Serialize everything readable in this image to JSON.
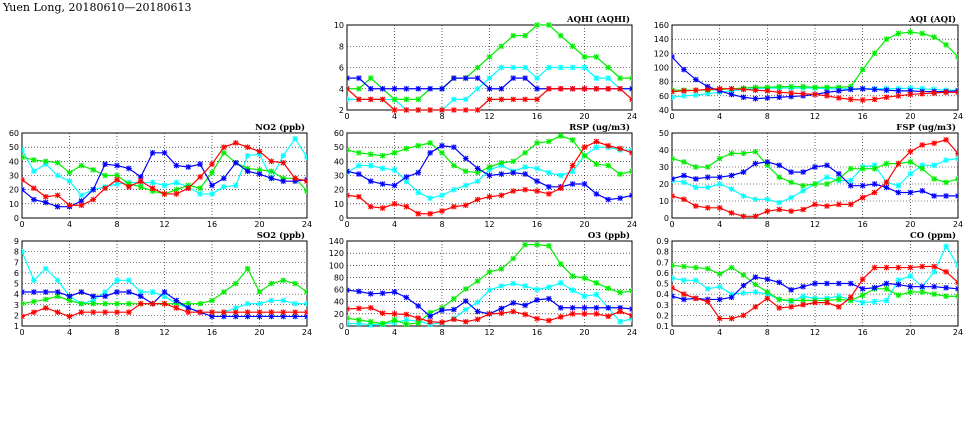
{
  "title": "Yuen Long, 20180610—20180613",
  "chart_data": [
    {
      "type": "line",
      "title": "AQHI (AQHI)",
      "ylim": [
        2,
        10
      ],
      "yticks": [
        2,
        4,
        6,
        8,
        10
      ],
      "xlim": [
        0,
        24
      ],
      "xticks": [
        0,
        4,
        8,
        12,
        16,
        20,
        24
      ],
      "grid": true,
      "series": [
        {
          "color": "#00ffff",
          "values": [
            3,
            3,
            3,
            3,
            3,
            2,
            2,
            2,
            2,
            3,
            3,
            4,
            5,
            6,
            6,
            6,
            5,
            6,
            6,
            6,
            6,
            5,
            5,
            4,
            4
          ]
        },
        {
          "color": "#00ee00",
          "values": [
            4,
            4,
            5,
            4,
            3,
            3,
            3,
            4,
            4,
            5,
            5,
            6,
            7,
            8,
            9,
            9,
            10,
            10,
            9,
            8,
            7,
            7,
            6,
            5,
            5
          ]
        },
        {
          "color": "#0000ff",
          "values": [
            5,
            5,
            4,
            4,
            4,
            4,
            4,
            4,
            4,
            5,
            5,
            5,
            4,
            4,
            5,
            5,
            4,
            4,
            4,
            4,
            4,
            4,
            4,
            4,
            4
          ]
        },
        {
          "color": "#ff0000",
          "values": [
            4,
            3,
            3,
            3,
            2,
            2,
            2,
            2,
            2,
            2,
            2,
            2,
            3,
            3,
            3,
            3,
            3,
            4,
            4,
            4,
            4,
            4,
            4,
            4,
            3
          ]
        }
      ]
    },
    {
      "type": "line",
      "title": "AQI (AQI)",
      "ylim": [
        40,
        160
      ],
      "yticks": [
        40,
        60,
        80,
        100,
        120,
        140,
        160
      ],
      "xlim": [
        0,
        24
      ],
      "xticks": [
        0,
        4,
        8,
        12,
        16,
        20,
        24
      ],
      "grid": true,
      "series": [
        {
          "color": "#00ffff",
          "values": [
            58,
            60,
            61,
            63,
            65,
            67,
            69,
            70,
            71,
            71,
            71,
            71,
            71,
            70,
            70,
            70,
            70,
            70,
            70,
            70,
            71,
            70,
            69,
            68,
            68
          ]
        },
        {
          "color": "#00ee00",
          "values": [
            68,
            68,
            68,
            68,
            69,
            70,
            71,
            72,
            72,
            73,
            73,
            73,
            72,
            72,
            72,
            73,
            97,
            120,
            140,
            148,
            150,
            148,
            143,
            132,
            115
          ]
        },
        {
          "color": "#0000ff",
          "values": [
            115,
            97,
            83,
            73,
            67,
            62,
            58,
            56,
            57,
            58,
            59,
            60,
            62,
            65,
            67,
            69,
            70,
            69,
            68,
            67,
            67,
            66,
            66,
            66,
            67
          ]
        },
        {
          "color": "#ff0000",
          "values": [
            66,
            67,
            68,
            69,
            70,
            70,
            69,
            68,
            67,
            65,
            64,
            63,
            62,
            60,
            57,
            55,
            54,
            55,
            58,
            60,
            62,
            63,
            64,
            65,
            65
          ]
        }
      ]
    },
    {
      "type": "line",
      "title": "NO2 (ppb)",
      "ylim": [
        0,
        60
      ],
      "yticks": [
        0,
        10,
        20,
        30,
        40,
        50,
        60
      ],
      "xlim": [
        0,
        24
      ],
      "xticks": [
        0,
        4,
        8,
        12,
        16,
        20,
        24
      ],
      "grid": true,
      "series": [
        {
          "color": "#00ffff",
          "values": [
            48,
            33,
            38,
            30,
            26,
            16,
            20,
            22,
            24,
            25,
            25,
            25,
            23,
            25,
            22,
            17,
            17,
            22,
            23,
            44,
            45,
            28,
            44,
            56,
            43
          ]
        },
        {
          "color": "#00ee00",
          "values": [
            43,
            41,
            40,
            39,
            32,
            37,
            34,
            30,
            30,
            24,
            22,
            19,
            17,
            20,
            23,
            21,
            32,
            46,
            39,
            35,
            34,
            33,
            28,
            28,
            19
          ]
        },
        {
          "color": "#0000ff",
          "values": [
            20,
            13,
            11,
            8,
            8,
            12,
            20,
            38,
            37,
            35,
            29,
            46,
            46,
            37,
            36,
            38,
            23,
            28,
            39,
            33,
            31,
            28,
            26,
            26,
            27
          ]
        },
        {
          "color": "#ff0000",
          "values": [
            27,
            21,
            15,
            16,
            9,
            9,
            13,
            21,
            27,
            22,
            26,
            21,
            17,
            17,
            21,
            29,
            38,
            50,
            53,
            50,
            47,
            40,
            39,
            28,
            26
          ]
        }
      ]
    },
    {
      "type": "line",
      "title": "RSP (ug/m3)",
      "ylim": [
        0,
        60
      ],
      "yticks": [
        0,
        10,
        20,
        30,
        40,
        50,
        60
      ],
      "xlim": [
        0,
        24
      ],
      "xticks": [
        0,
        4,
        8,
        12,
        16,
        20,
        24
      ],
      "grid": true,
      "series": [
        {
          "color": "#00ffff",
          "values": [
            32,
            37,
            37,
            35,
            34,
            26,
            18,
            14,
            16,
            20,
            23,
            26,
            34,
            37,
            33,
            36,
            35,
            32,
            30,
            33,
            44,
            50,
            50,
            48,
            48
          ]
        },
        {
          "color": "#00ee00",
          "values": [
            48,
            46,
            45,
            44,
            46,
            49,
            51,
            53,
            46,
            37,
            33,
            32,
            36,
            39,
            40,
            46,
            53,
            54,
            58,
            55,
            44,
            38,
            37,
            31,
            33
          ]
        },
        {
          "color": "#0000ff",
          "values": [
            33,
            31,
            26,
            24,
            23,
            29,
            32,
            46,
            51,
            50,
            42,
            35,
            30,
            31,
            32,
            31,
            26,
            22,
            22,
            24,
            24,
            17,
            13,
            14,
            16
          ]
        },
        {
          "color": "#ff0000",
          "values": [
            16,
            15,
            8,
            7,
            10,
            8,
            3,
            3,
            5,
            8,
            9,
            13,
            15,
            16,
            19,
            20,
            19,
            17,
            21,
            37,
            50,
            54,
            51,
            49,
            46
          ]
        }
      ]
    },
    {
      "type": "line",
      "title": "FSP (ug/m3)",
      "ylim": [
        0,
        50
      ],
      "yticks": [
        0,
        10,
        20,
        30,
        40,
        50
      ],
      "xlim": [
        0,
        24
      ],
      "xticks": [
        0,
        4,
        8,
        12,
        16,
        20,
        24
      ],
      "grid": true,
      "series": [
        {
          "color": "#00ffff",
          "values": [
            22,
            21,
            18,
            18,
            20,
            17,
            13,
            11,
            11,
            9,
            12,
            16,
            20,
            24,
            22,
            22,
            30,
            31,
            21,
            19,
            26,
            31,
            31,
            34,
            35
          ]
        },
        {
          "color": "#00ee00",
          "values": [
            35,
            33,
            30,
            30,
            35,
            38,
            38,
            39,
            31,
            24,
            21,
            19,
            20,
            20,
            23,
            29,
            29,
            29,
            32,
            32,
            33,
            29,
            23,
            21,
            23
          ]
        },
        {
          "color": "#0000ff",
          "values": [
            23,
            25,
            23,
            24,
            24,
            25,
            27,
            32,
            33,
            31,
            27,
            27,
            30,
            31,
            26,
            19,
            19,
            20,
            18,
            15,
            15,
            16,
            13,
            13,
            13
          ]
        },
        {
          "color": "#ff0000",
          "values": [
            13,
            11,
            7,
            6,
            6,
            3,
            1,
            1,
            4,
            5,
            4,
            5,
            8,
            7,
            8,
            8,
            12,
            15,
            21,
            32,
            39,
            43,
            44,
            46,
            38
          ]
        }
      ]
    },
    {
      "type": "line",
      "title": "SO2 (ppb)",
      "ylim": [
        1,
        9
      ],
      "yticks": [
        1,
        2,
        3,
        4,
        5,
        6,
        7,
        8,
        9
      ],
      "xlim": [
        0,
        24
      ],
      "xticks": [
        0,
        4,
        8,
        12,
        16,
        20,
        24
      ],
      "grid": true,
      "series": [
        {
          "color": "#00ffff",
          "values": [
            8,
            5.3,
            6.4,
            5.3,
            3.8,
            3.1,
            3.4,
            4.2,
            5.3,
            5.3,
            4.2,
            4.2,
            3.8,
            3.1,
            2.7,
            2.3,
            2.3,
            2.3,
            2.7,
            3.1,
            3.1,
            3.4,
            3.4,
            3.1,
            3.1
          ]
        },
        {
          "color": "#00ee00",
          "values": [
            3.1,
            3.3,
            3.5,
            3.8,
            3.4,
            3.1,
            3.1,
            3.1,
            3.1,
            3.1,
            3.1,
            3.1,
            3.1,
            3.1,
            3.1,
            3.1,
            3.4,
            4.2,
            5,
            6.4,
            4.2,
            5,
            5.3,
            5,
            4.2
          ]
        },
        {
          "color": "#0000ff",
          "values": [
            4.2,
            4.2,
            4.2,
            4.2,
            3.8,
            4.2,
            3.8,
            3.8,
            4.2,
            4.2,
            3.8,
            3.1,
            4.2,
            3.4,
            2.7,
            2.3,
            1.9,
            1.9,
            1.9,
            1.9,
            1.9,
            1.9,
            1.9,
            1.9,
            1.9
          ]
        },
        {
          "color": "#ff0000",
          "values": [
            1.9,
            2.3,
            2.7,
            2.3,
            1.9,
            2.3,
            2.3,
            2.3,
            2.3,
            2.3,
            3.1,
            3.1,
            3.1,
            2.7,
            2.3,
            2.3,
            2.3,
            2.3,
            2.3,
            2.3,
            2.3,
            2.3,
            2.3,
            2.3,
            2.3
          ]
        }
      ]
    },
    {
      "type": "line",
      "title": "O3 (ppb)",
      "ylim": [
        0,
        140
      ],
      "yticks": [
        0,
        20,
        40,
        60,
        80,
        100,
        120,
        140
      ],
      "xlim": [
        0,
        24
      ],
      "xticks": [
        0,
        4,
        8,
        12,
        16,
        20,
        24
      ],
      "grid": true,
      "series": [
        {
          "color": "#00ffff",
          "values": [
            4,
            4,
            2,
            3,
            6,
            10,
            8,
            3,
            5,
            12,
            27,
            39,
            59,
            66,
            70,
            66,
            60,
            64,
            71,
            59,
            49,
            52,
            30,
            7,
            12
          ]
        },
        {
          "color": "#00ee00",
          "values": [
            13,
            10,
            7,
            4,
            10,
            3,
            5,
            22,
            30,
            45,
            61,
            74,
            89,
            94,
            111,
            134,
            134,
            132,
            102,
            82,
            79,
            71,
            62,
            55,
            58
          ]
        },
        {
          "color": "#0000ff",
          "values": [
            59,
            57,
            53,
            54,
            56,
            47,
            33,
            16,
            26,
            27,
            41,
            24,
            20,
            29,
            38,
            34,
            43,
            45,
            30,
            30,
            30,
            30,
            30,
            30,
            28
          ]
        },
        {
          "color": "#ff0000",
          "values": [
            28,
            29,
            30,
            21,
            20,
            19,
            13,
            7,
            6,
            11,
            7,
            11,
            20,
            21,
            24,
            19,
            12,
            9,
            15,
            20,
            20,
            20,
            16,
            24,
            17
          ]
        }
      ]
    },
    {
      "type": "line",
      "title": "CO (ppm)",
      "ylim": [
        0.1,
        0.9
      ],
      "yticks": [
        0.1,
        0.2,
        0.3,
        0.4,
        0.5,
        0.6,
        0.7,
        0.8,
        0.9
      ],
      "xlim": [
        0,
        24
      ],
      "xticks": [
        0,
        4,
        8,
        12,
        16,
        20,
        24
      ],
      "grid": true,
      "series": [
        {
          "color": "#00ffff",
          "values": [
            0.55,
            0.53,
            0.53,
            0.45,
            0.47,
            0.4,
            0.41,
            0.42,
            0.4,
            0.35,
            0.33,
            0.38,
            0.36,
            0.36,
            0.38,
            0.35,
            0.32,
            0.33,
            0.34,
            0.53,
            0.57,
            0.47,
            0.61,
            0.85,
            0.67
          ]
        },
        {
          "color": "#00ee00",
          "values": [
            0.67,
            0.66,
            0.65,
            0.64,
            0.59,
            0.65,
            0.58,
            0.49,
            0.42,
            0.35,
            0.34,
            0.34,
            0.34,
            0.34,
            0.35,
            0.34,
            0.39,
            0.45,
            0.45,
            0.39,
            0.42,
            0.42,
            0.4,
            0.38,
            0.38
          ]
        },
        {
          "color": "#0000ff",
          "values": [
            0.38,
            0.35,
            0.36,
            0.35,
            0.35,
            0.37,
            0.48,
            0.56,
            0.54,
            0.51,
            0.44,
            0.47,
            0.5,
            0.5,
            0.5,
            0.5,
            0.45,
            0.46,
            0.5,
            0.49,
            0.47,
            0.47,
            0.47,
            0.46,
            0.45
          ]
        },
        {
          "color": "#ff0000",
          "values": [
            0.46,
            0.4,
            0.36,
            0.33,
            0.17,
            0.17,
            0.2,
            0.28,
            0.36,
            0.27,
            0.28,
            0.3,
            0.32,
            0.32,
            0.28,
            0.37,
            0.54,
            0.65,
            0.65,
            0.65,
            0.65,
            0.66,
            0.66,
            0.61,
            0.51
          ]
        }
      ]
    }
  ]
}
